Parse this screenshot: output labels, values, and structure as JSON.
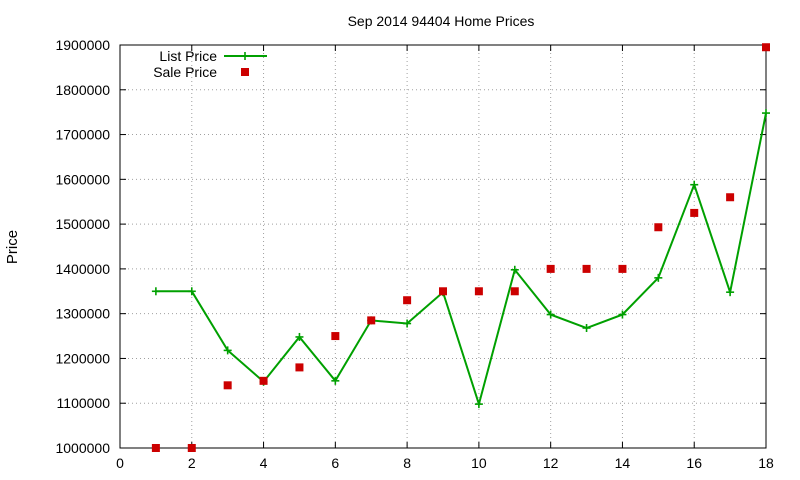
{
  "chart_data": {
    "type": "line",
    "title": "Sep 2014 94404 Home Prices",
    "xlabel": "",
    "ylabel": "Price",
    "xlim": [
      0,
      18
    ],
    "ylim": [
      1000000,
      1900000
    ],
    "xticks": [
      "0",
      "2",
      "4",
      "6",
      "8",
      "10",
      "12",
      "14",
      "16",
      "18"
    ],
    "yticks": [
      "1000000",
      "1100000",
      "1200000",
      "1300000",
      "1400000",
      "1500000",
      "1600000",
      "1700000",
      "1800000",
      "1900000"
    ],
    "grid": true,
    "legend_position": "top-left",
    "series": [
      {
        "name": "List Price",
        "style": "line+cross",
        "color": "#00a000",
        "x": [
          1,
          2,
          3,
          4,
          5,
          6,
          7,
          8,
          9,
          10,
          11,
          12,
          13,
          14,
          15,
          16,
          17,
          18
        ],
        "values": [
          1350000,
          1350000,
          1218000,
          1148000,
          1248000,
          1150000,
          1285000,
          1278000,
          1348000,
          1098000,
          1398000,
          1298000,
          1268000,
          1298000,
          1380000,
          1588000,
          1348000,
          1748000
        ]
      },
      {
        "name": "Sale Price",
        "style": "square-points",
        "color": "#cc0000",
        "x": [
          1,
          2,
          3,
          4,
          5,
          6,
          7,
          8,
          9,
          10,
          11,
          12,
          13,
          14,
          15,
          16,
          17,
          18
        ],
        "values": [
          1000000,
          1000000,
          1140000,
          1150000,
          1180000,
          1250000,
          1285000,
          1330000,
          1350000,
          1350000,
          1350000,
          1400000,
          1400000,
          1400000,
          1493000,
          1525000,
          1560000,
          1895000
        ]
      }
    ]
  }
}
